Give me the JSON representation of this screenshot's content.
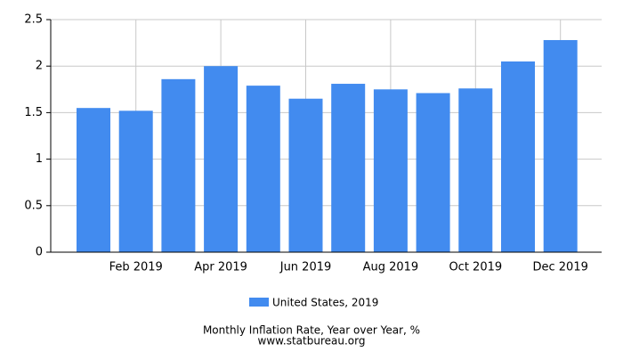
{
  "chart_data": {
    "type": "bar",
    "title": "Monthly Inflation Rate, Year over Year, %",
    "source": "www.statbureau.org",
    "categories": [
      null,
      "Feb 2019",
      null,
      "Apr 2019",
      null,
      "Jun 2019",
      null,
      "Aug 2019",
      null,
      "Oct 2019",
      null,
      "Dec 2019"
    ],
    "series": [
      {
        "name": "United States, 2019",
        "color": "#428bef",
        "values": [
          1.55,
          1.52,
          1.86,
          2.0,
          1.79,
          1.65,
          1.81,
          1.75,
          1.71,
          1.76,
          2.05,
          2.28
        ]
      }
    ],
    "ylim": [
      0,
      2.5
    ],
    "yticks": [
      0,
      0.5,
      1,
      1.5,
      2,
      2.5
    ],
    "grid": true
  }
}
